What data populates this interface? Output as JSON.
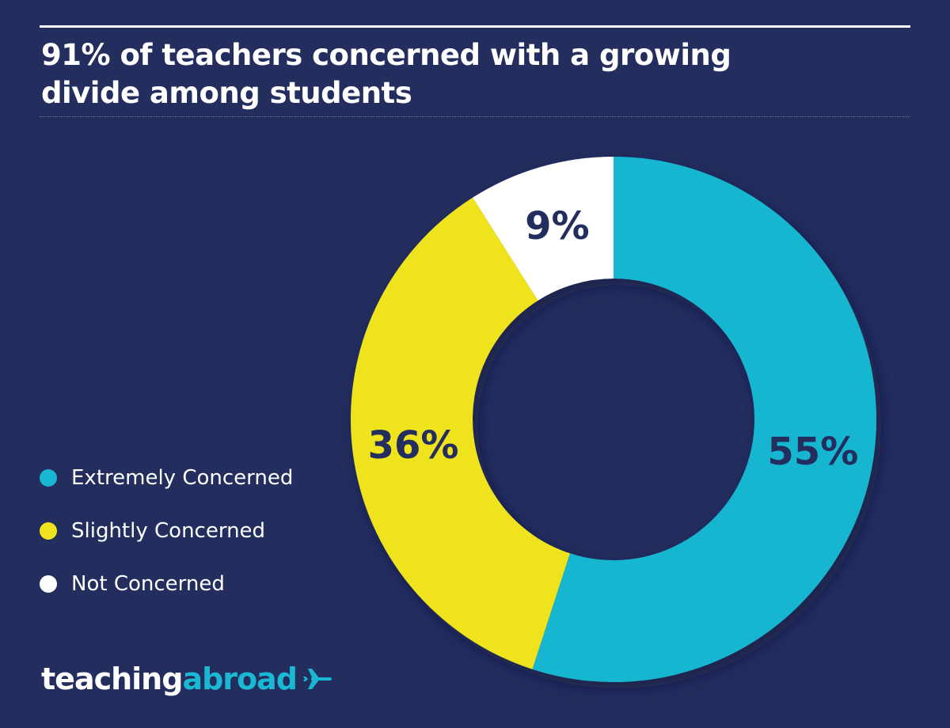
{
  "title": "91% of teachers concerned with a growing divide among students",
  "chart_data": {
    "type": "pie",
    "variant": "donut",
    "title": "91% of teachers concerned with a growing divide among students",
    "slices": [
      {
        "label": "Extremely Concerned",
        "value": 55,
        "display": "55%",
        "color": "#19b6d1"
      },
      {
        "label": "Slightly Concerned",
        "value": 36,
        "display": "36%",
        "color": "#eee31c"
      },
      {
        "label": "Not Concerned",
        "value": 9,
        "display": "9%",
        "color": "#ffffff"
      }
    ],
    "legend_position": "left"
  },
  "legend": {
    "items": [
      {
        "label": "Extremely Concerned",
        "color": "#19b6d1"
      },
      {
        "label": "Slightly Concerned",
        "color": "#eee31c"
      },
      {
        "label": "Not Concerned",
        "color": "#ffffff"
      }
    ]
  },
  "logo": {
    "part1": "teaching",
    "part2": "abroad",
    "icon": "airplane-icon"
  },
  "colors": {
    "background": "#232e5f",
    "accent": "#19b6d1",
    "yellow": "#eee31c"
  }
}
